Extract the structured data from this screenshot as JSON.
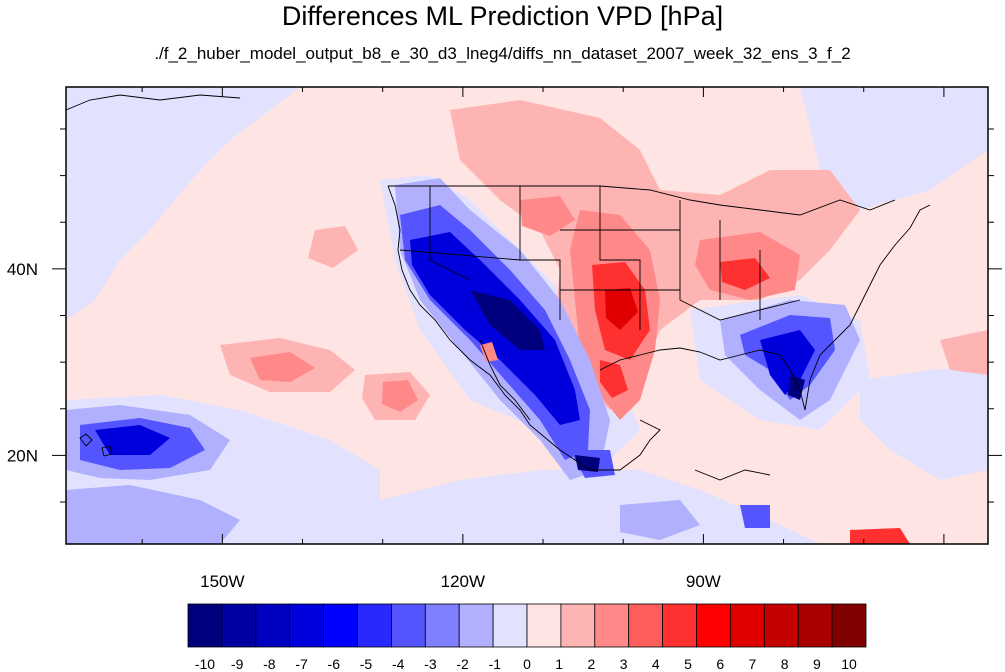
{
  "title": "Differences ML Prediction VPD [hPa]",
  "subtitle": "./f_2_huber_model_output_b8_e_30_d3_lneg4/diffs_nn_dataset_2007_week_32_ens_3_f_2",
  "axes": {
    "lon_range": [
      -169.5,
      -54.5
    ],
    "lat_range": [
      10.5,
      59.5
    ],
    "x_ticks": [
      {
        "lon": -150,
        "label": "150W"
      },
      {
        "lon": -120,
        "label": "120W"
      },
      {
        "lon": -90,
        "label": "90W"
      }
    ],
    "y_ticks": [
      {
        "lat": 40,
        "label": "40N"
      },
      {
        "lat": 20,
        "label": "20N"
      }
    ]
  },
  "colorbar": {
    "labels": [
      "-10",
      "-9",
      "-8",
      "-7",
      "-6",
      "-5",
      "-4",
      "-3",
      "-2",
      "-1",
      "0",
      "1",
      "2",
      "3",
      "4",
      "5",
      "6",
      "7",
      "8",
      "9",
      "10"
    ],
    "colors": [
      "#00007e",
      "#0000a0",
      "#0000c0",
      "#0000dd",
      "#0000ff",
      "#2828ff",
      "#5555ff",
      "#8080ff",
      "#b0b0ff",
      "#e2e2ff",
      "#ffe4e4",
      "#ffb4b4",
      "#ff8888",
      "#ff5c5c",
      "#ff3030",
      "#ff0000",
      "#e00000",
      "#c40000",
      "#a80000",
      "#800000"
    ]
  }
}
